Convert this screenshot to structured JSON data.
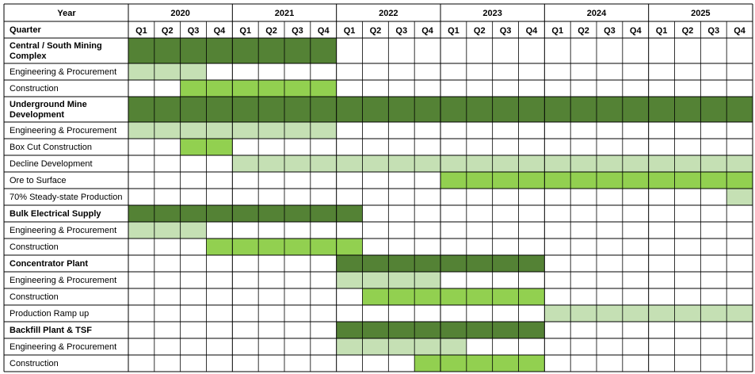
{
  "chart_data": {
    "type": "gantt",
    "header": {
      "year_label": "Year",
      "quarter_label": "Quarter"
    },
    "years": [
      "2020",
      "2021",
      "2022",
      "2023",
      "2024",
      "2025"
    ],
    "quarter_labels": [
      "Q1",
      "Q2",
      "Q3",
      "Q4"
    ],
    "rows": [
      {
        "label": "Central / South Mining Complex",
        "kind": "summary",
        "start": "2020-01-01",
        "end": "2021-12-31"
      },
      {
        "label": "Engineering & Procurement",
        "kind": "engineering",
        "start": "2020-01-01",
        "end": "2020-09-30"
      },
      {
        "label": "Construction",
        "kind": "construction",
        "start": "2020-07-01",
        "end": "2021-12-31"
      },
      {
        "label": "Underground Mine Development",
        "kind": "summary",
        "start": "2020-01-01",
        "end": "2025-12-31"
      },
      {
        "label": "Engineering & Procurement",
        "kind": "engineering",
        "start": "2020-01-01",
        "end": "2021-12-31"
      },
      {
        "label": "Box Cut Construction",
        "kind": "construction",
        "start": "2020-07-01",
        "end": "2020-12-31"
      },
      {
        "label": "Decline Development",
        "kind": "engineering",
        "start": "2021-01-01",
        "end": "2025-12-31"
      },
      {
        "label": "Ore to Surface",
        "kind": "construction",
        "start": "2023-01-01",
        "end": "2025-12-31"
      },
      {
        "label": "70% Steady-state Production",
        "kind": "engineering",
        "start": "2025-10-01",
        "end": "2025-12-31"
      },
      {
        "label": "Bulk Electrical Supply",
        "kind": "summary",
        "start": "2020-01-01",
        "end": "2022-03-31"
      },
      {
        "label": "Engineering & Procurement",
        "kind": "engineering",
        "start": "2020-01-01",
        "end": "2020-09-30"
      },
      {
        "label": "Construction",
        "kind": "construction",
        "start": "2020-10-01",
        "end": "2022-03-31"
      },
      {
        "label": "Concentrator Plant",
        "kind": "summary",
        "start": "2022-01-01",
        "end": "2023-12-31"
      },
      {
        "label": "Engineering & Procurement",
        "kind": "engineering",
        "start": "2022-01-01",
        "end": "2022-12-31"
      },
      {
        "label": "Construction",
        "kind": "construction",
        "start": "2022-04-01",
        "end": "2023-12-31"
      },
      {
        "label": "Production Ramp up",
        "kind": "engineering",
        "start": "2024-01-01",
        "end": "2025-12-31"
      },
      {
        "label": "Backfill Plant & TSF",
        "kind": "summary",
        "start": "2022-01-01",
        "end": "2023-12-31"
      },
      {
        "label": "Engineering & Procurement",
        "kind": "engineering",
        "start": "2022-01-01",
        "end": "2023-03-31"
      },
      {
        "label": "Construction",
        "kind": "construction",
        "start": "2022-10-01",
        "end": "2023-12-31"
      }
    ],
    "colors": {
      "summary": "#548235",
      "construction": "#92D050",
      "engineering": "#C5E0B4",
      "grid": "#000000",
      "background": "#FFFFFF"
    },
    "legend": "none"
  }
}
